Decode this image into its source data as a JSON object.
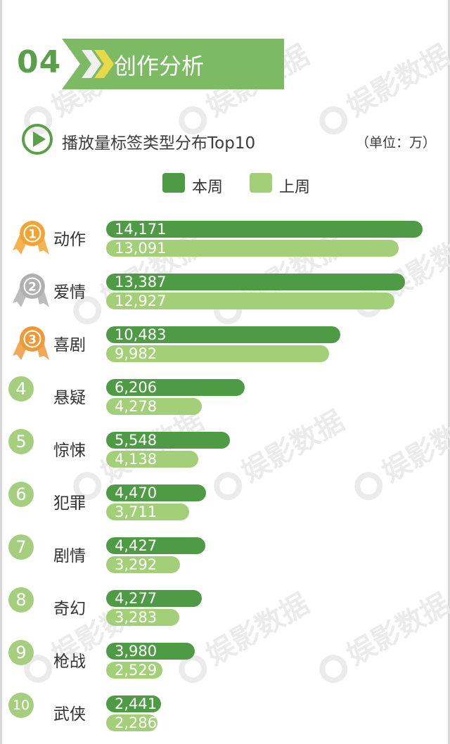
{
  "watermark": {
    "text": "娱影数据"
  },
  "section": {
    "number": "04",
    "title": "创作分析"
  },
  "chart_title": "播放量标签类型分布Top10",
  "unit": "（单位：万）",
  "colors": {
    "current": "#4f9b45",
    "previous": "#a3cf78",
    "gold": "#f3a533",
    "silver": "#b0b0b0",
    "bronze": "#ee9a3a"
  },
  "legend": {
    "current": "本周",
    "previous": "上周"
  },
  "chart_data": {
    "type": "bar",
    "orientation": "horizontal",
    "categories": [
      "动作",
      "爱情",
      "喜剧",
      "悬疑",
      "惊悚",
      "犯罪",
      "剧情",
      "奇幻",
      "枪战",
      "武侠"
    ],
    "ranks": [
      "1",
      "2",
      "3",
      "4",
      "5",
      "6",
      "7",
      "8",
      "9",
      "10"
    ],
    "series": [
      {
        "name": "本周",
        "values": [
          14171,
          13387,
          10483,
          6206,
          5548,
          4470,
          4427,
          4277,
          3980,
          2441
        ],
        "labels": [
          "14,171",
          "13,387",
          "10,483",
          "6,206",
          "5,548",
          "4,470",
          "4,427",
          "4,277",
          "3,980",
          "2,441"
        ]
      },
      {
        "name": "上周",
        "values": [
          13091,
          12927,
          9982,
          4278,
          4138,
          3711,
          3292,
          3283,
          2529,
          2286
        ],
        "labels": [
          "13,091",
          "12,927",
          "9,982",
          "4,278",
          "4,138",
          "3,711",
          "3,292",
          "3,283",
          "2,529",
          "2,286"
        ]
      }
    ],
    "xlim": [
      0,
      14171
    ],
    "unit": "万"
  }
}
